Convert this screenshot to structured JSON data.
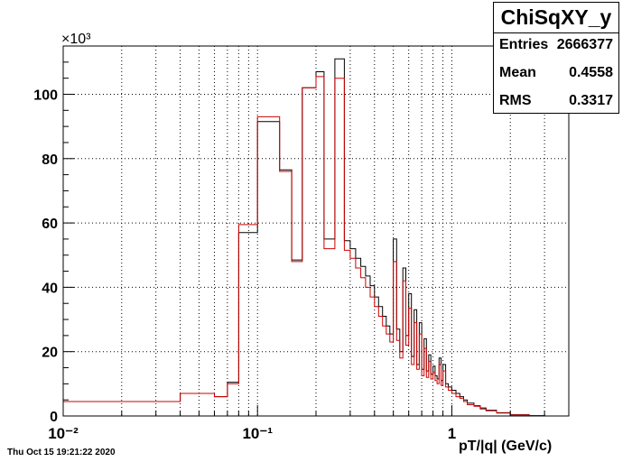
{
  "stats": {
    "title": "ChiSqXY_y",
    "entries_label": "Entries",
    "entries_value": "2666377",
    "mean_label": "Mean",
    "mean_value": "0.4558",
    "rms_label": "RMS",
    "rms_value": "0.3317"
  },
  "footer_date": "Thu Oct 15 19:21:22 2020",
  "y_multiplier": "×10³",
  "chart_data": {
    "type": "histogram",
    "x_scale": "log",
    "xlim": [
      0.01,
      4
    ],
    "ylim": [
      0,
      115
    ],
    "ylabel_multiplier": "×10³",
    "xlabel": "pT/|q| (GeV/c)",
    "grid": true,
    "x_tick_labels": [
      "10⁻²",
      "10⁻¹",
      "1"
    ],
    "y_tick_labels": [
      "0",
      "20",
      "40",
      "60",
      "80",
      "100"
    ],
    "y_ticks": [
      0,
      20,
      40,
      60,
      80,
      100
    ],
    "series": [
      {
        "color": "#000000",
        "edges": [
          0.01,
          0.04,
          0.06,
          0.07,
          0.08,
          0.1,
          0.13,
          0.15,
          0.17,
          0.2,
          0.22,
          0.25,
          0.28,
          0.3,
          0.32,
          0.34,
          0.36,
          0.38,
          0.4,
          0.42,
          0.44,
          0.46,
          0.48,
          0.5,
          0.52,
          0.54,
          0.56,
          0.58,
          0.6,
          0.62,
          0.64,
          0.66,
          0.68,
          0.7,
          0.72,
          0.74,
          0.76,
          0.78,
          0.8,
          0.82,
          0.84,
          0.86,
          0.88,
          0.9,
          0.93,
          0.96,
          1.0,
          1.05,
          1.1,
          1.15,
          1.2,
          1.3,
          1.4,
          1.5,
          1.7,
          2.0,
          2.5,
          3.0,
          4.0
        ],
        "values": [
          4.5,
          7.0,
          6.0,
          10.5,
          57.0,
          91.5,
          76.5,
          48.5,
          102.0,
          107.0,
          55.0,
          111.0,
          54.5,
          52.0,
          49.0,
          46.5,
          43.5,
          40.5,
          37.0,
          34.0,
          31.0,
          28.0,
          25.5,
          55.0,
          27.0,
          20.0,
          46.0,
          25.0,
          38.0,
          18.5,
          33.0,
          16.0,
          29.0,
          14.5,
          24.0,
          14.0,
          19.0,
          13.0,
          15.5,
          12.5,
          11.5,
          18.0,
          11.0,
          16.0,
          10.0,
          9.0,
          8.0,
          7.0,
          6.0,
          5.0,
          4.0,
          3.2,
          2.5,
          1.8,
          1.0,
          0.4,
          0.1,
          0.0
        ]
      },
      {
        "color": "#cc0000",
        "edges": [
          0.01,
          0.04,
          0.06,
          0.07,
          0.08,
          0.1,
          0.13,
          0.15,
          0.17,
          0.2,
          0.22,
          0.25,
          0.28,
          0.3,
          0.32,
          0.34,
          0.36,
          0.38,
          0.4,
          0.42,
          0.44,
          0.46,
          0.48,
          0.5,
          0.52,
          0.54,
          0.56,
          0.58,
          0.6,
          0.62,
          0.64,
          0.66,
          0.68,
          0.7,
          0.72,
          0.74,
          0.76,
          0.78,
          0.8,
          0.82,
          0.84,
          0.86,
          0.88,
          0.9,
          0.93,
          0.96,
          1.0,
          1.05,
          1.1,
          1.15,
          1.2,
          1.3,
          1.4,
          1.5,
          1.7,
          2.0,
          2.5,
          3.0,
          4.0
        ],
        "values": [
          4.5,
          7.0,
          6.0,
          10.0,
          59.5,
          93.0,
          76.0,
          48.0,
          102.0,
          105.5,
          52.0,
          105.0,
          51.5,
          49.0,
          46.0,
          43.0,
          40.0,
          37.0,
          34.0,
          31.0,
          28.0,
          25.5,
          23.0,
          48.0,
          23.5,
          18.0,
          42.0,
          22.0,
          33.5,
          16.0,
          29.0,
          14.5,
          25.5,
          12.5,
          21.0,
          12.0,
          17.0,
          11.5,
          13.5,
          11.0,
          10.0,
          16.0,
          9.5,
          14.0,
          9.0,
          8.0,
          7.0,
          6.0,
          5.5,
          4.5,
          3.5,
          3.0,
          2.2,
          1.6,
          0.9,
          0.3,
          0.1,
          0.0
        ]
      }
    ]
  }
}
